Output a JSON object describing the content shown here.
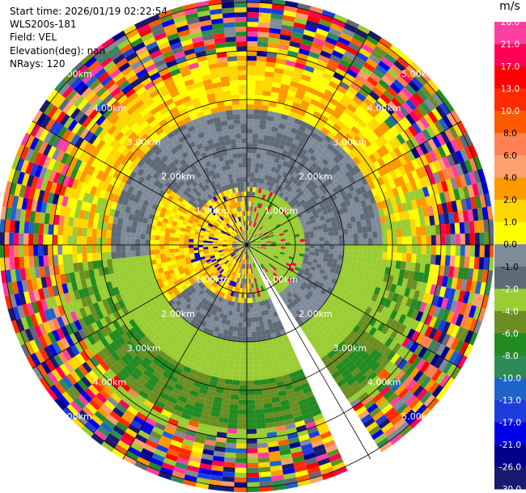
{
  "header": {
    "start_time": "Start time: 2026/01/19 02:22:54",
    "instrument": "WLS200s-181",
    "field": "Field: VEL",
    "elevation": "Elevation(deg): nan",
    "nrays": "NRays: 120"
  },
  "colorbar": {
    "unit": "m/s",
    "ticks": [
      "26.0",
      "21.0",
      "17.0",
      "13.0",
      "10.0",
      "8.0",
      "6.0",
      "4.0",
      "2.0",
      "1.0",
      "0.0",
      "-1.0",
      "-2.0",
      "-4.0",
      "-6.0",
      "-8.0",
      "-10.0",
      "-13.0",
      "-17.0",
      "-21.0",
      "-26.0",
      "-30.0"
    ],
    "colors": [
      "#ff3fa0",
      "#ff0055",
      "#ff0000",
      "#ff2a00",
      "#ff5a00",
      "#ff8050",
      "#ffa070",
      "#ff9900",
      "#ffd700",
      "#ffff00",
      "#808b99",
      "#5f6a77",
      "#9acd32",
      "#6b8e23",
      "#228b22",
      "#2e8b57",
      "#1e64c8",
      "#1e3cdc",
      "#0000e6",
      "#00008b",
      "#191970"
    ]
  },
  "chart_data": {
    "type": "heatmap",
    "subtype": "PPI radar display",
    "field": "VEL",
    "units": "m/s",
    "nrays": 120,
    "range_rings_km": [
      1,
      2,
      3,
      4,
      5
    ],
    "range_ring_labels": [
      "1.00km",
      "2.00km",
      "3.00km",
      "4.00km",
      "5.00km"
    ],
    "color_limits": [
      -30.0,
      26.0
    ],
    "missing_sector_bearing_deg": [
      148,
      156
    ],
    "grid": true
  }
}
